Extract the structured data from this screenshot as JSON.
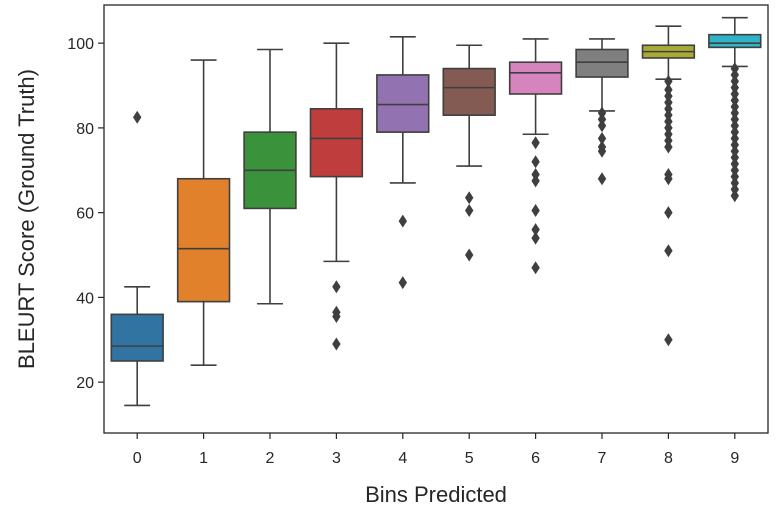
{
  "chart_data": {
    "type": "box",
    "title": "",
    "xlabel": "Bins Predicted",
    "ylabel": "BLEURT Score (Ground Truth)",
    "ylim": [
      8,
      109
    ],
    "yticks": [
      20,
      40,
      60,
      80,
      100
    ],
    "categories": [
      "0",
      "1",
      "2",
      "3",
      "4",
      "5",
      "6",
      "7",
      "8",
      "9"
    ],
    "colors": [
      "#3274a1",
      "#e1812c",
      "#3a923a",
      "#c03d3e",
      "#9372b2",
      "#845b53",
      "#d684bd",
      "#7f7f7f",
      "#a9aa35",
      "#2eb4c6"
    ],
    "boxes": [
      {
        "whislo": 14.5,
        "q1": 25,
        "med": 28.5,
        "q3": 36,
        "whishi": 42.5,
        "fliers": [
          82.5
        ]
      },
      {
        "whislo": 24,
        "q1": 39,
        "med": 51.5,
        "q3": 68,
        "whishi": 96,
        "fliers": []
      },
      {
        "whislo": 38.5,
        "q1": 61,
        "med": 70,
        "q3": 79,
        "whishi": 98.5,
        "fliers": []
      },
      {
        "whislo": 48.5,
        "q1": 68.5,
        "med": 77.5,
        "q3": 84.5,
        "whishi": 100,
        "fliers": [
          42.5,
          36.5,
          35.5,
          29
        ]
      },
      {
        "whislo": 67,
        "q1": 79,
        "med": 85.5,
        "q3": 92.5,
        "whishi": 101.5,
        "fliers": [
          58,
          43.5
        ]
      },
      {
        "whislo": 71,
        "q1": 83,
        "med": 89.5,
        "q3": 94,
        "whishi": 99.5,
        "fliers": [
          63.5,
          60.5,
          50
        ]
      },
      {
        "whislo": 78.5,
        "q1": 88,
        "med": 93,
        "q3": 95.5,
        "whishi": 101,
        "fliers": [
          76.5,
          72,
          69,
          67.5,
          60.5,
          56,
          54,
          47
        ]
      },
      {
        "whislo": 84,
        "q1": 92,
        "med": 95.5,
        "q3": 98.5,
        "whishi": 101,
        "fliers": [
          83.5,
          82,
          80.5,
          77.5,
          75.5,
          74.5,
          68
        ]
      },
      {
        "whislo": 91.5,
        "q1": 96.5,
        "med": 98,
        "q3": 99.5,
        "whishi": 104,
        "fliers": [
          91,
          89,
          87.5,
          86,
          84.5,
          83,
          81.5,
          80,
          78.5,
          77,
          75.5,
          69,
          68,
          60,
          51,
          30
        ]
      },
      {
        "whislo": 94.5,
        "q1": 99,
        "med": 100,
        "q3": 102,
        "whishi": 106,
        "fliers": [
          94,
          92.5,
          91,
          89.5,
          88,
          86.5,
          85,
          83.5,
          82,
          80.5,
          79,
          77.5,
          76,
          74.5,
          73,
          71.5,
          70,
          68.5,
          67,
          65.5,
          64
        ]
      }
    ]
  }
}
